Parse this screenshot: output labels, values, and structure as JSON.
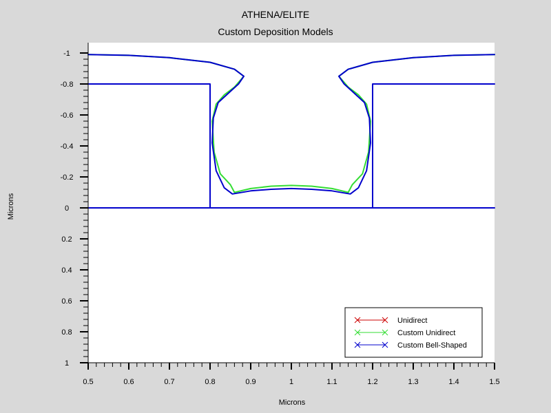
{
  "chart_data": {
    "type": "line",
    "title": "ATHENA/ELITE",
    "subtitle": "Custom Deposition Models",
    "xlabel": "Microns",
    "ylabel": "Microns",
    "xlim": [
      0.5,
      1.5
    ],
    "ylim": [
      -1,
      1
    ],
    "y_inverted": true,
    "grid": false,
    "legend_position": "bottom-right",
    "x_ticks": [
      "0.5",
      "0.6",
      "0.7",
      "0.8",
      "0.9",
      "1",
      "1.1",
      "1.2",
      "1.3",
      "1.4",
      "1.5"
    ],
    "y_ticks": [
      "-1",
      "-0.8",
      "-0.6",
      "-0.4",
      "-0.2",
      "0",
      "0.2",
      "0.4",
      "0.6",
      "0.8",
      "1"
    ],
    "colors": {
      "background": "#d9d9d9",
      "plot_background": "#ffffff",
      "unidirect": "#cc0000",
      "custom_unidirect": "#33dd33",
      "custom_bell_shaped": "#0000cc"
    },
    "series": [
      {
        "name": "Unidirect",
        "color": "#cc0000",
        "segments": []
      },
      {
        "name": "Custom Unidirect",
        "color": "#33dd33",
        "segments": [
          {
            "x": [
              0.5,
              0.6,
              0.7,
              0.8,
              0.86,
              0.883,
              0.86,
              0.835,
              0.815,
              0.805,
              0.81,
              0.825,
              0.85,
              0.86,
              0.9,
              0.95,
              1.0,
              1.05,
              1.1,
              1.14,
              1.15,
              1.175,
              1.19,
              1.195,
              1.185,
              1.165,
              1.14,
              1.117,
              1.14,
              1.2,
              1.3,
              1.4,
              1.5
            ],
            "y": [
              -0.99,
              -0.985,
              -0.97,
              -0.94,
              -0.895,
              -0.85,
              -0.78,
              -0.73,
              -0.67,
              -0.56,
              -0.36,
              -0.22,
              -0.15,
              -0.1,
              -0.125,
              -0.14,
              -0.145,
              -0.14,
              -0.125,
              -0.1,
              -0.15,
              -0.22,
              -0.36,
              -0.56,
              -0.67,
              -0.73,
              -0.78,
              -0.85,
              -0.895,
              -0.94,
              -0.97,
              -0.985,
              -0.99
            ]
          }
        ]
      },
      {
        "name": "Custom Bell-Shaped",
        "color": "#0000cc",
        "segments": [
          {
            "x": [
              0.5,
              0.8,
              0.8
            ],
            "y": [
              -0.8,
              -0.8,
              0
            ]
          },
          {
            "x": [
              1.2,
              1.2,
              1.5
            ],
            "y": [
              0,
              -0.8,
              -0.8
            ]
          },
          {
            "x": [
              0.5,
              1.5
            ],
            "y": [
              0,
              0
            ]
          },
          {
            "x": [
              0.5,
              0.6,
              0.7,
              0.8,
              0.86,
              0.883,
              0.87,
              0.845,
              0.82,
              0.808,
              0.805,
              0.815,
              0.835,
              0.855,
              0.9,
              0.95,
              1.0,
              1.05,
              1.1,
              1.145,
              1.165,
              1.185,
              1.195,
              1.192,
              1.18,
              1.155,
              1.13,
              1.117,
              1.14,
              1.2,
              1.3,
              1.4,
              1.5
            ],
            "y": [
              -0.99,
              -0.985,
              -0.97,
              -0.94,
              -0.895,
              -0.85,
              -0.8,
              -0.74,
              -0.68,
              -0.58,
              -0.42,
              -0.24,
              -0.13,
              -0.09,
              -0.11,
              -0.12,
              -0.125,
              -0.12,
              -0.11,
              -0.09,
              -0.13,
              -0.24,
              -0.42,
              -0.58,
              -0.68,
              -0.74,
              -0.8,
              -0.85,
              -0.895,
              -0.94,
              -0.97,
              -0.985,
              -0.99
            ]
          }
        ]
      }
    ]
  }
}
